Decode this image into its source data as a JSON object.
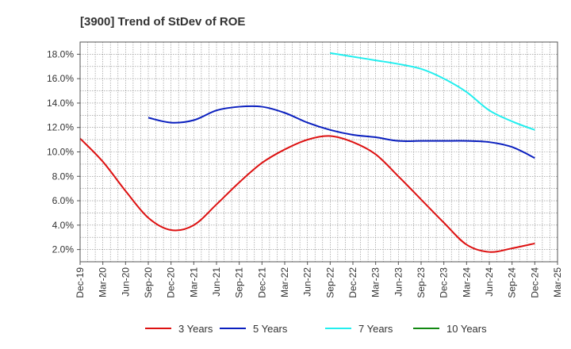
{
  "chart_data": {
    "type": "line",
    "title": "[3900]  Trend of StDev of ROE",
    "xlabel": "",
    "ylabel": "",
    "ylim": [
      1.0,
      19.0
    ],
    "yticks": [
      2.0,
      4.0,
      6.0,
      8.0,
      10.0,
      12.0,
      14.0,
      16.0,
      18.0
    ],
    "ytick_labels": [
      "2.0%",
      "4.0%",
      "6.0%",
      "8.0%",
      "10.0%",
      "12.0%",
      "14.0%",
      "16.0%",
      "18.0%"
    ],
    "categories": [
      "Dec-19",
      "Mar-20",
      "Jun-20",
      "Sep-20",
      "Dec-20",
      "Mar-21",
      "Jun-21",
      "Sep-21",
      "Dec-21",
      "Mar-22",
      "Jun-22",
      "Sep-22",
      "Dec-22",
      "Mar-23",
      "Jun-23",
      "Sep-23",
      "Dec-23",
      "Mar-24",
      "Jun-24",
      "Sep-24",
      "Dec-24",
      "Mar-25"
    ],
    "grid": true,
    "legend_position": "bottom",
    "series": [
      {
        "name": "3 Years",
        "color": "#dd1111",
        "values": [
          11.1,
          9.2,
          6.8,
          4.6,
          3.6,
          4.0,
          5.7,
          7.5,
          9.1,
          10.2,
          11.0,
          11.3,
          10.8,
          9.8,
          8.0,
          6.1,
          4.2,
          2.4,
          1.8,
          2.1,
          2.5,
          null
        ]
      },
      {
        "name": "5 Years",
        "color": "#0a1fbf",
        "values": [
          null,
          null,
          null,
          12.8,
          12.4,
          12.6,
          13.4,
          13.7,
          13.7,
          13.2,
          12.4,
          11.8,
          11.4,
          11.2,
          10.9,
          10.9,
          10.9,
          10.9,
          10.8,
          10.4,
          9.5,
          null
        ]
      },
      {
        "name": "7 Years",
        "color": "#22eeee",
        "values": [
          null,
          null,
          null,
          null,
          null,
          null,
          null,
          null,
          null,
          null,
          null,
          18.1,
          17.8,
          17.5,
          17.2,
          16.8,
          16.0,
          14.9,
          13.4,
          12.5,
          11.8,
          null
        ]
      },
      {
        "name": "10 Years",
        "color": "#118811",
        "values": [
          null,
          null,
          null,
          null,
          null,
          null,
          null,
          null,
          null,
          null,
          null,
          null,
          null,
          null,
          null,
          null,
          null,
          null,
          null,
          null,
          null,
          null
        ]
      }
    ]
  }
}
